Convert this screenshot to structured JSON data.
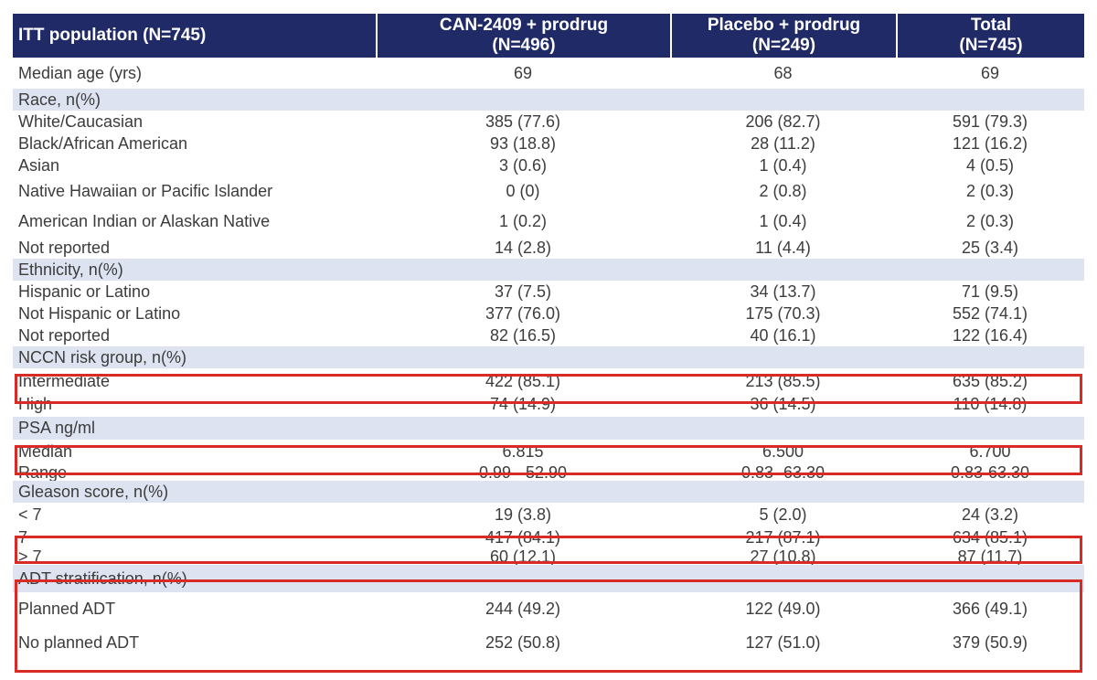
{
  "header": {
    "population": "ITT population (N=745)",
    "arm1_name": "CAN-2409 + prodrug",
    "arm1_n": "(N=496)",
    "arm2_name": "Placebo + prodrug",
    "arm2_n": "(N=249)",
    "total_name": "Total",
    "total_n": "(N=745)"
  },
  "rows": [
    {
      "label": "Median age (yrs)",
      "arm1": "69",
      "arm2": "68",
      "total": "69"
    },
    {
      "label": "Race, n(%)",
      "arm1": "",
      "arm2": "",
      "total": ""
    },
    {
      "label": "White/Caucasian",
      "arm1": "385 (77.6)",
      "arm2": "206 (82.7)",
      "total": "591 (79.3)"
    },
    {
      "label": "Black/African American",
      "arm1": "93 (18.8)",
      "arm2": "28 (11.2)",
      "total": "121 (16.2)"
    },
    {
      "label": "Asian",
      "arm1": "3 (0.6)",
      "arm2": "1 (0.4)",
      "total": "4 (0.5)"
    },
    {
      "label": "Native Hawaiian or Pacific Islander",
      "arm1": "0 (0)",
      "arm2": "2 (0.8)",
      "total": "2 (0.3)"
    },
    {
      "label": "American Indian or Alaskan Native",
      "arm1": "1 (0.2)",
      "arm2": "1 (0.4)",
      "total": "2 (0.3)"
    },
    {
      "label": "Not reported",
      "arm1": "14 (2.8)",
      "arm2": "11 (4.4)",
      "total": "25 (3.4)"
    },
    {
      "label": "Ethnicity, n(%)",
      "arm1": "",
      "arm2": "",
      "total": ""
    },
    {
      "label": "Hispanic or Latino",
      "arm1": "37 (7.5)",
      "arm2": "34 (13.7)",
      "total": "71 (9.5)"
    },
    {
      "label": "Not Hispanic or Latino",
      "arm1": "377 (76.0)",
      "arm2": "175 (70.3)",
      "total": "552 (74.1)"
    },
    {
      "label": "Not reported",
      "arm1": "82 (16.5)",
      "arm2": "40 (16.1)",
      "total": "122 (16.4)"
    },
    {
      "label": "NCCN risk group, n(%)",
      "arm1": "",
      "arm2": "",
      "total": ""
    },
    {
      "label": "Intermediate",
      "arm1": "422 (85.1)",
      "arm2": "213 (85.5)",
      "total": "635 (85.2)"
    },
    {
      "label": "High",
      "arm1": "74 (14.9)",
      "arm2": "36 (14.5)",
      "total": "110 (14.8)"
    },
    {
      "label": "PSA ng/ml",
      "arm1": "",
      "arm2": "",
      "total": ""
    },
    {
      "label": "Median",
      "arm1": "6.815",
      "arm2": "6.500",
      "total": "6.700"
    },
    {
      "label": "Range",
      "arm1": "0.99 - 52.90",
      "arm2": "0.83 -63.30",
      "total": "0.83-63.30"
    },
    {
      "label": "Gleason score, n(%)",
      "arm1": "",
      "arm2": "",
      "total": ""
    },
    {
      "label": "< 7",
      "arm1": "19 (3.8)",
      "arm2": "5 (2.0)",
      "total": "24 (3.2)"
    },
    {
      "label": "7",
      "arm1": "417 (84.1)",
      "arm2": "217 (87.1)",
      "total": "634 (85.1)"
    },
    {
      "label": "> 7",
      "arm1": "60 (12.1)",
      "arm2": "27 (10.8)",
      "total": "87 (11.7)"
    },
    {
      "label": "ADT stratification, n(%)",
      "arm1": "",
      "arm2": "",
      "total": ""
    },
    {
      "label": "Planned ADT",
      "arm1": "244 (49.2)",
      "arm2": "122 (49.0)",
      "total": "366 (49.1)"
    },
    {
      "label": "No planned ADT",
      "arm1": "252 (50.8)",
      "arm2": "127 (51.0)",
      "total": "379 (50.9)"
    }
  ],
  "colors": {
    "header_bg": "#1f2a66",
    "section_bg": "#dde3f0",
    "highlight": "#d92b26",
    "text": "#3c3c3c"
  }
}
